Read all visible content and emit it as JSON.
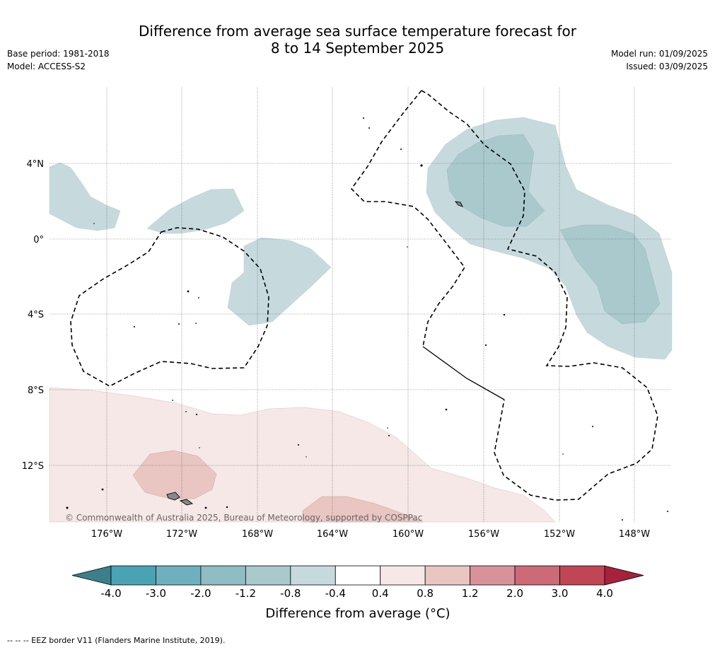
{
  "title": {
    "line1": "Difference from average sea surface temperature forecast for",
    "line2": "8 to 14 September 2025"
  },
  "meta": {
    "base_period": "Base period: 1981-2018",
    "model": "Model: ACCESS-S2",
    "model_run": "Model run: 01/09/2025",
    "issued": "Issued: 03/09/2025"
  },
  "map": {
    "lat_labels": [
      "4°N",
      "0°",
      "4°S",
      "8°S",
      "12°S"
    ],
    "lon_labels": [
      "176°W",
      "172°W",
      "168°W",
      "164°W",
      "160°W",
      "156°W",
      "152°W",
      "148°W"
    ],
    "copyright": "© Commonwealth of Australia 2025, Bureau of Meteorology, supported by COSPPac"
  },
  "colorbar": {
    "title": "Difference from average (°C)",
    "ticks": [
      "-4.0",
      "-3.0",
      "-2.0",
      "-1.2",
      "-0.8",
      "-0.4",
      "0.4",
      "0.8",
      "1.2",
      "2.0",
      "3.0",
      "4.0"
    ],
    "colors": [
      "#3b7f8a",
      "#4aa3b3",
      "#6fb0bf",
      "#90bcc4",
      "#a9c9cd",
      "#c6dade",
      "#ffffff",
      "#f5e8e6",
      "#e9c6c1",
      "#d99299",
      "#cd6a77",
      "#c04656",
      "#a8213b"
    ]
  },
  "footnote": "--  --  -- EEZ border V11 (Flanders Marine Institute, 2019)."
}
